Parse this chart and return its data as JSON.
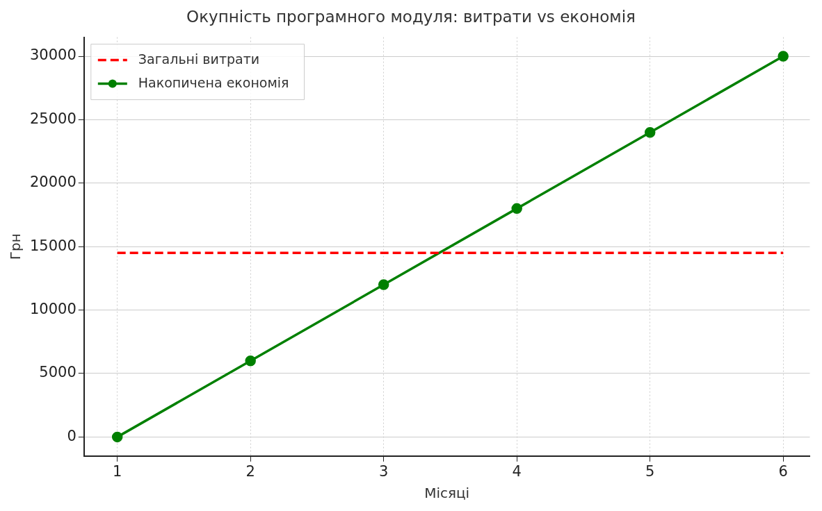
{
  "chart_data": {
    "type": "line",
    "title": "Окупність програмного модуля: витрати vs економія",
    "xlabel": "Місяці",
    "ylabel": "Грн",
    "x": [
      1,
      2,
      3,
      4,
      5,
      6
    ],
    "series": [
      {
        "name": "Загальні витрати",
        "color": "#ff0000",
        "values": [
          14500,
          14500,
          14500,
          14500,
          14500,
          14500
        ],
        "line_style": "dashed",
        "marker": "none"
      },
      {
        "name": "Накопичена економія",
        "color": "#008000",
        "values": [
          0,
          6000,
          12000,
          18000,
          24000,
          30000
        ],
        "line_style": "solid",
        "marker": "circle"
      }
    ],
    "xlim": [
      0.75,
      6.2
    ],
    "xticks": [
      1,
      2,
      3,
      4,
      5,
      6
    ],
    "ylim": [
      -1500,
      31500
    ],
    "yticks": [
      0,
      5000,
      10000,
      15000,
      20000,
      25000,
      30000
    ],
    "grid": true,
    "legend": "top left"
  }
}
